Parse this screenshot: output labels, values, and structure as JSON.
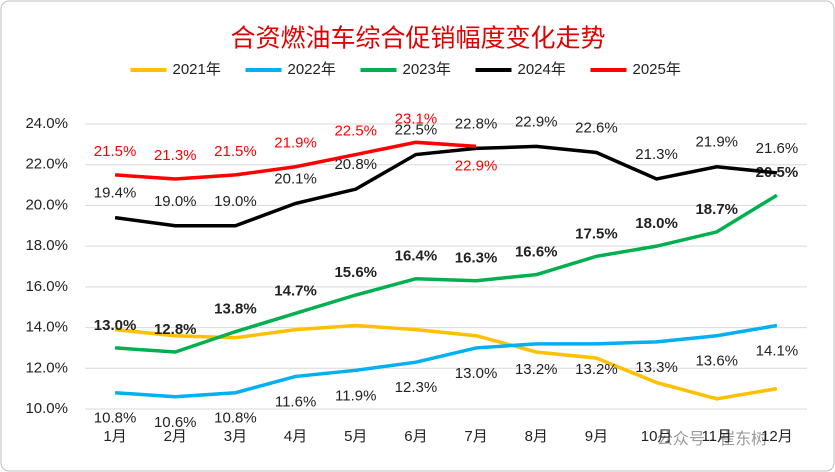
{
  "chart_data": {
    "type": "line",
    "title": "合资燃油车综合促销幅度变化走势",
    "categories": [
      "1月",
      "2月",
      "3月",
      "4月",
      "5月",
      "6月",
      "7月",
      "8月",
      "9月",
      "10月",
      "11月",
      "12月"
    ],
    "ylim": [
      10,
      24
    ],
    "yticks": [
      {
        "value": 10,
        "label": "10.0%"
      },
      {
        "value": 12,
        "label": "12.0%"
      },
      {
        "value": 14,
        "label": "14.0%"
      },
      {
        "value": 16,
        "label": "16.0%"
      },
      {
        "value": 18,
        "label": "18.0%"
      },
      {
        "value": 20,
        "label": "20.0%"
      },
      {
        "value": 22,
        "label": "22.0%"
      },
      {
        "value": 24,
        "label": "24.0%"
      }
    ],
    "grid": true,
    "legend": "top",
    "series": [
      {
        "name": "2021年",
        "color": "#ffc000",
        "values": [
          13.9,
          13.6,
          13.5,
          13.9,
          14.1,
          13.9,
          13.6,
          12.8,
          12.5,
          11.3,
          10.5,
          11.0
        ]
      },
      {
        "name": "2022年",
        "color": "#00b0f0",
        "values": [
          10.8,
          10.6,
          10.8,
          11.6,
          11.9,
          12.3,
          13.0,
          13.2,
          13.2,
          13.3,
          13.6,
          14.1
        ],
        "value_labels": [
          "10.8%",
          "10.6%",
          "10.8%",
          "11.6%",
          "11.9%",
          "12.3%",
          "13.0%",
          "13.2%",
          "13.2%",
          "13.3%",
          "13.6%",
          "14.1%"
        ]
      },
      {
        "name": "2023年",
        "color": "#00b050",
        "values": [
          13.0,
          12.8,
          13.8,
          14.7,
          15.6,
          16.4,
          16.3,
          16.6,
          17.5,
          18.0,
          18.7,
          20.5
        ],
        "value_labels": [
          "13.0%",
          "12.8%",
          "13.8%",
          "14.7%",
          "15.6%",
          "16.4%",
          "16.3%",
          "16.6%",
          "17.5%",
          "18.0%",
          "18.7%",
          "20.5%"
        ]
      },
      {
        "name": "2024年",
        "color": "#000000",
        "values": [
          19.4,
          19.0,
          19.0,
          20.1,
          20.8,
          22.5,
          22.8,
          22.9,
          22.6,
          21.3,
          21.9,
          21.6
        ],
        "value_labels": [
          "19.4%",
          "19.0%",
          "19.0%",
          "20.1%",
          "20.8%",
          "22.5%",
          "22.8%",
          "22.9%",
          "22.6%",
          "21.3%",
          "21.9%",
          "21.6%"
        ]
      },
      {
        "name": "2025年",
        "color": "#ff0000",
        "values": [
          21.5,
          21.3,
          21.5,
          21.9,
          22.5,
          23.1,
          22.9,
          null,
          null,
          null,
          null,
          null
        ],
        "value_labels": [
          "21.5%",
          "21.3%",
          "21.5%",
          "21.9%",
          "22.5%",
          "23.1%",
          "22.9%",
          null,
          null,
          null,
          null,
          null
        ]
      }
    ]
  },
  "watermark": "公众号 · 崔东树"
}
